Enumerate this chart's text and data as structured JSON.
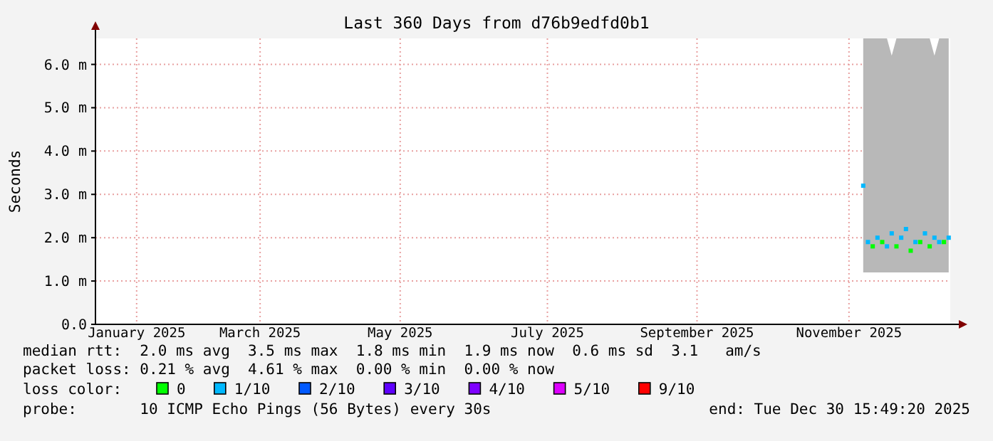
{
  "chart_data": {
    "type": "scatter",
    "title": "Last 360 Days from d76b9edfd0b1",
    "ylabel": "Seconds",
    "legend_title": "loss color:",
    "legend": "bottom",
    "grid": true,
    "marker": "square",
    "xlim": [
      "2025-01-04T15:49",
      "2025-12-30T15:49"
    ],
    "xticks": [
      {
        "value": "2025-01-22",
        "label": "January 2025"
      },
      {
        "value": "2025-03-15",
        "label": "March 2025"
      },
      {
        "value": "2025-05-13",
        "label": "May 2025"
      },
      {
        "value": "2025-07-14",
        "label": "July 2025"
      },
      {
        "value": "2025-09-15",
        "label": "September 2025"
      },
      {
        "value": "2025-11-18",
        "label": "November 2025"
      }
    ],
    "ylim": [
      0,
      6.6
    ],
    "yticks": [
      {
        "value": 0,
        "label": "0.0"
      },
      {
        "value": 1,
        "label": "1.0 m"
      },
      {
        "value": 2,
        "label": "2.0 m"
      },
      {
        "value": 3,
        "label": "3.0 m"
      },
      {
        "value": 4,
        "label": "4.0 m"
      },
      {
        "value": 5,
        "label": "5.0 m"
      },
      {
        "value": 6,
        "label": "6.0 m"
      }
    ],
    "x": [
      "2025-11-24",
      "2025-11-26",
      "2025-11-28",
      "2025-11-30",
      "2025-12-02",
      "2025-12-04",
      "2025-12-06",
      "2025-12-08",
      "2025-12-10",
      "2025-12-12",
      "2025-12-14",
      "2025-12-16",
      "2025-12-18",
      "2025-12-20",
      "2025-12-22",
      "2025-12-24",
      "2025-12-26",
      "2025-12-28",
      "2025-12-30"
    ],
    "series": [
      {
        "name": "0",
        "color": "#00ff00",
        "values": [
          null,
          null,
          1.8,
          null,
          1.9,
          null,
          null,
          1.8,
          null,
          null,
          1.7,
          null,
          1.9,
          null,
          1.8,
          null,
          null,
          1.9,
          null
        ]
      },
      {
        "name": "1/10",
        "color": "#00b8ff",
        "values": [
          3.2,
          1.9,
          null,
          2.0,
          null,
          1.8,
          2.1,
          null,
          2.0,
          2.2,
          null,
          1.9,
          null,
          2.1,
          null,
          2.0,
          1.9,
          null,
          2.0
        ],
        "lower": [
          1.2,
          1.2,
          1.2,
          1.2,
          1.2,
          1.2,
          1.2,
          1.2,
          1.2,
          1.2,
          1.2,
          1.2,
          1.2,
          1.2,
          1.2,
          1.2,
          1.2,
          1.2,
          1.2
        ],
        "upper": [
          6.6,
          6.6,
          6.6,
          6.6,
          6.6,
          6.6,
          6.2,
          6.6,
          6.6,
          6.6,
          6.6,
          6.6,
          6.6,
          6.6,
          6.6,
          6.2,
          6.6,
          6.6,
          6.6
        ]
      },
      {
        "name": "2/10",
        "color": "#0059ff",
        "values": [
          null,
          null,
          null,
          null,
          null,
          null,
          null,
          null,
          null,
          null,
          null,
          null,
          null,
          null,
          null,
          null,
          null,
          null,
          null
        ]
      },
      {
        "name": "3/10",
        "color": "#5e00ff",
        "values": [
          null,
          null,
          null,
          null,
          null,
          null,
          null,
          null,
          null,
          null,
          null,
          null,
          null,
          null,
          null,
          null,
          null,
          null,
          null
        ]
      },
      {
        "name": "4/10",
        "color": "#7e00ff",
        "values": [
          null,
          null,
          null,
          null,
          null,
          null,
          null,
          null,
          null,
          null,
          null,
          null,
          null,
          null,
          null,
          null,
          null,
          null,
          null
        ]
      },
      {
        "name": "5/10",
        "color": "#dd00ff",
        "values": [
          null,
          null,
          null,
          null,
          null,
          null,
          null,
          null,
          null,
          null,
          null,
          null,
          null,
          null,
          null,
          null,
          null,
          null,
          null
        ]
      },
      {
        "name": "9/10",
        "color": "#ff0000",
        "values": [
          null,
          null,
          null,
          null,
          null,
          null,
          null,
          null,
          null,
          null,
          null,
          null,
          null,
          null,
          null,
          null,
          null,
          null,
          null
        ]
      }
    ],
    "annotations": [
      "median rtt:  2.0 ms avg  3.5 ms max  1.8 ms min  1.9 ms now  0.6 ms sd  3.1   am/s",
      "packet loss: 0.21 % avg  4.61 % max  0.00 % min  0.00 % now",
      "probe:       10 ICMP Echo Pings (56 Bytes) every 30s",
      "end: Tue Dec 30 15:49:20 2025"
    ]
  }
}
